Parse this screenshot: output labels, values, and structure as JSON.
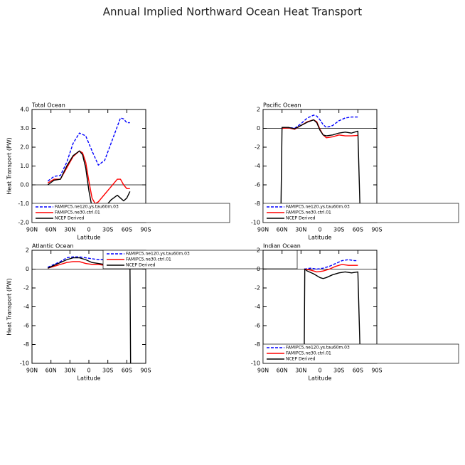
{
  "title": "Annual Implied Northward Ocean Heat Transport",
  "chart_data": [
    {
      "type": "line",
      "title": "Total Ocean",
      "xlabel": "Latitude",
      "ylabel": "Heat Transport (PW)",
      "xlim": [
        90,
        -90
      ],
      "xticks": [
        {
          "value": 90,
          "label": "90N"
        },
        {
          "value": 60,
          "label": "60N"
        },
        {
          "value": 30,
          "label": "30N"
        },
        0,
        {
          "value": -30,
          "label": "30S"
        },
        {
          "value": -60,
          "label": "60S"
        },
        {
          "value": -90,
          "label": "90S"
        }
      ],
      "ylim": [
        -2,
        4
      ],
      "yticks": [
        {
          "value": -2,
          "label": "-2.0"
        },
        {
          "value": -1,
          "label": "-1.0"
        },
        {
          "value": 0,
          "label": "0.0"
        },
        {
          "value": 1,
          "label": "1.0"
        },
        {
          "value": 2,
          "label": "2.0"
        },
        {
          "value": 3,
          "label": "3.0"
        },
        {
          "value": 4,
          "label": "4.0"
        }
      ],
      "hline": 0,
      "series": [
        {
          "name": "FAMIPC5.ne120.ys.tau60m.03",
          "color": "#0000ff",
          "linestyle": "dashed",
          "x": [
            65,
            55,
            45,
            35,
            25,
            15,
            5,
            -5,
            -15,
            -25,
            -35,
            -45,
            -50,
            -55,
            -60,
            -65
          ],
          "values": [
            0.2,
            0.45,
            0.5,
            1.2,
            2.2,
            2.75,
            2.6,
            1.8,
            1.05,
            1.3,
            2.2,
            3.1,
            3.55,
            3.5,
            3.3,
            3.3
          ]
        },
        {
          "name": "FAMIPC5.ne30.ctrl.01",
          "color": "#ff0000",
          "linestyle": "solid",
          "x": [
            65,
            55,
            45,
            35,
            25,
            15,
            10,
            5,
            0,
            -5,
            -10,
            -15,
            -25,
            -35,
            -45,
            -50,
            -55,
            -60,
            -65
          ],
          "values": [
            0.1,
            0.3,
            0.3,
            0.9,
            1.5,
            1.8,
            1.7,
            1.2,
            0.2,
            -0.7,
            -1.0,
            -0.9,
            -0.5,
            -0.1,
            0.3,
            0.3,
            0.0,
            -0.2,
            -0.2
          ]
        },
        {
          "name": "NCEP Derived",
          "color": "#000000",
          "linestyle": "solid",
          "x": [
            65,
            55,
            45,
            35,
            25,
            15,
            10,
            5,
            0,
            -5,
            -10,
            -15,
            -25,
            -35,
            -45,
            -50,
            -55,
            -60,
            -65
          ],
          "values": [
            0.0,
            0.25,
            0.3,
            1.0,
            1.55,
            1.8,
            1.6,
            0.9,
            -0.3,
            -1.2,
            -1.6,
            -1.6,
            -1.2,
            -0.8,
            -0.55,
            -0.7,
            -0.85,
            -0.7,
            -0.35
          ]
        }
      ]
    },
    {
      "type": "line",
      "title": "Pacific Ocean",
      "xlabel": "Latitude",
      "xlim": [
        90,
        -90
      ],
      "xticks": [
        {
          "value": 90,
          "label": "90N"
        },
        {
          "value": 60,
          "label": "60N"
        },
        {
          "value": 30,
          "label": "30N"
        },
        0,
        {
          "value": -30,
          "label": "30S"
        },
        {
          "value": -60,
          "label": "60S"
        },
        {
          "value": -90,
          "label": "90S"
        }
      ],
      "ylim": [
        -10,
        2
      ],
      "yticks": [
        -10,
        -8,
        -6,
        -4,
        -2,
        0,
        2
      ],
      "hline": 0,
      "series": [
        {
          "name": "FAMIPC5.ne120.ys.tau60m.03",
          "color": "#0000ff",
          "linestyle": "dashed",
          "x": [
            60,
            50,
            40,
            30,
            20,
            10,
            5,
            0,
            -5,
            -10,
            -20,
            -30,
            -40,
            -50,
            -60
          ],
          "values": [
            0,
            0.1,
            0.0,
            0.5,
            1.1,
            1.4,
            1.3,
            0.9,
            0.4,
            0.1,
            0.3,
            0.8,
            1.1,
            1.2,
            1.2
          ]
        },
        {
          "name": "FAMIPC5.ne30.ctrl.01",
          "color": "#ff0000",
          "linestyle": "solid",
          "x": [
            60,
            50,
            40,
            30,
            20,
            10,
            5,
            0,
            -5,
            -10,
            -20,
            -30,
            -40,
            -50,
            -60
          ],
          "values": [
            0,
            0.05,
            -0.1,
            0.3,
            0.7,
            0.9,
            0.7,
            -0.1,
            -0.7,
            -1.0,
            -0.9,
            -0.7,
            -0.8,
            -0.8,
            -0.75
          ]
        },
        {
          "name": "NCEP Derived",
          "color": "#000000",
          "linestyle": "solid",
          "x": [
            62,
            60,
            50,
            40,
            30,
            20,
            10,
            5,
            0,
            -5,
            -10,
            -20,
            -30,
            -40,
            -50,
            -60,
            -64
          ],
          "values": [
            -10,
            0.1,
            0.1,
            -0.05,
            0.3,
            0.65,
            0.9,
            0.6,
            -0.2,
            -0.7,
            -0.8,
            -0.7,
            -0.5,
            -0.4,
            -0.5,
            -0.3,
            -10
          ]
        }
      ]
    },
    {
      "type": "line",
      "title": "Atlantic Ocean",
      "xlabel": "Latitude",
      "ylabel": "Heat Transport (PW)",
      "xlim": [
        90,
        -90
      ],
      "xticks": [
        {
          "value": 90,
          "label": "90N"
        },
        {
          "value": 60,
          "label": "60N"
        },
        {
          "value": 30,
          "label": "30N"
        },
        0,
        {
          "value": -30,
          "label": "30S"
        },
        {
          "value": -60,
          "label": "60S"
        },
        {
          "value": -90,
          "label": "90S"
        }
      ],
      "ylim": [
        -10,
        2
      ],
      "yticks": [
        -10,
        -8,
        -6,
        -4,
        -2,
        0,
        2
      ],
      "hline": 0,
      "series": [
        {
          "name": "FAMIPC5.ne120.ys.tau60m.03",
          "color": "#0000ff",
          "linestyle": "dashed",
          "x": [
            65,
            55,
            45,
            35,
            25,
            15,
            5,
            -5,
            -15,
            -25,
            -35,
            -45,
            -55,
            -60
          ],
          "values": [
            0.2,
            0.5,
            0.8,
            1.2,
            1.3,
            1.3,
            1.2,
            1.1,
            1.0,
            1.0,
            0.9,
            0.8,
            0.8,
            0.7
          ]
        },
        {
          "name": "FAMIPC5.ne30.ctrl.01",
          "color": "#ff0000",
          "linestyle": "solid",
          "x": [
            65,
            55,
            45,
            35,
            25,
            15,
            5,
            -5,
            -15,
            -25,
            -35,
            -45,
            -55,
            -60
          ],
          "values": [
            0.1,
            0.3,
            0.5,
            0.7,
            0.8,
            0.8,
            0.6,
            0.5,
            0.5,
            0.4,
            0.5,
            0.5,
            0.4,
            0.4
          ]
        },
        {
          "name": "NCEP Derived",
          "color": "#000000",
          "linestyle": "solid",
          "x": [
            65,
            55,
            45,
            35,
            25,
            15,
            5,
            -5,
            -15,
            -25,
            -35,
            -45,
            -55,
            -65,
            -66
          ],
          "values": [
            0.1,
            0.4,
            0.7,
            1.0,
            1.2,
            1.2,
            1.0,
            0.7,
            0.6,
            0.5,
            0.4,
            0.5,
            0.5,
            0.5,
            -10
          ]
        }
      ]
    },
    {
      "type": "line",
      "title": "Indian Ocean",
      "xlabel": "Latitude",
      "xlim": [
        90,
        -90
      ],
      "xticks": [
        {
          "value": 90,
          "label": "90N"
        },
        {
          "value": 60,
          "label": "60N"
        },
        {
          "value": 30,
          "label": "30N"
        },
        0,
        {
          "value": -30,
          "label": "30S"
        },
        {
          "value": -60,
          "label": "60S"
        },
        {
          "value": -90,
          "label": "90S"
        }
      ],
      "ylim": [
        -10,
        2
      ],
      "yticks": [
        -10,
        -8,
        -6,
        -4,
        -2,
        0,
        2
      ],
      "hline": 0,
      "series": [
        {
          "name": "FAMIPC5.ne120.ys.tau60m.03",
          "color": "#0000ff",
          "linestyle": "dashed",
          "x": [
            25,
            15,
            5,
            -5,
            -15,
            -25,
            -35,
            -45,
            -55,
            -60
          ],
          "values": [
            0,
            0.1,
            0.0,
            0.1,
            0.3,
            0.6,
            0.9,
            1.0,
            0.9,
            0.9
          ]
        },
        {
          "name": "FAMIPC5.ne30.ctrl.01",
          "color": "#ff0000",
          "linestyle": "solid",
          "x": [
            25,
            15,
            5,
            -5,
            -15,
            -25,
            -35,
            -45,
            -55,
            -60
          ],
          "values": [
            0,
            -0.1,
            -0.3,
            -0.2,
            0.0,
            0.3,
            0.5,
            0.4,
            0.4,
            0.4
          ]
        },
        {
          "name": "NCEP Derived",
          "color": "#000000",
          "linestyle": "solid",
          "x": [
            25,
            24,
            20,
            10,
            0,
            -5,
            -10,
            -20,
            -30,
            -40,
            -50,
            -60,
            -64
          ],
          "values": [
            -10,
            0.0,
            -0.2,
            -0.5,
            -0.9,
            -1.0,
            -0.9,
            -0.6,
            -0.4,
            -0.3,
            -0.4,
            -0.3,
            -10
          ]
        }
      ]
    }
  ]
}
